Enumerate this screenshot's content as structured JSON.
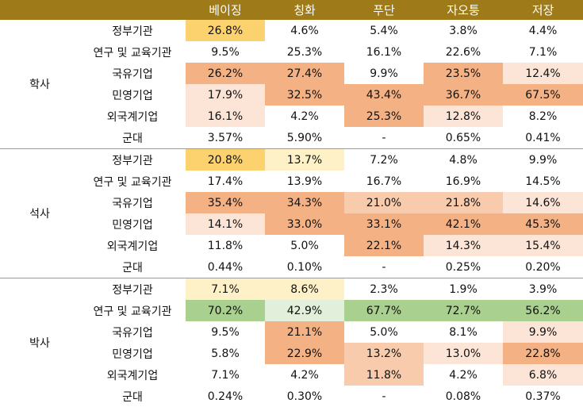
{
  "header": {
    "corner": "",
    "inst_header": "",
    "columns": [
      "베이징",
      "칭화",
      "푸단",
      "자오퉁",
      "저장"
    ]
  },
  "groups": [
    {
      "degree": "학사",
      "rows": [
        {
          "inst": "정부기관",
          "values": [
            "26.8%",
            "4.6%",
            "5.4%",
            "3.8%",
            "4.4%"
          ]
        },
        {
          "inst": "연구 및 교육기관",
          "values": [
            "9.5%",
            "25.3%",
            "16.1%",
            "22.6%",
            "7.1%"
          ]
        },
        {
          "inst": "국유기업",
          "values": [
            "26.2%",
            "27.4%",
            "9.9%",
            "23.5%",
            "12.4%"
          ]
        },
        {
          "inst": "민영기업",
          "values": [
            "17.9%",
            "32.5%",
            "43.4%",
            "36.7%",
            "67.5%"
          ]
        },
        {
          "inst": "외국계기업",
          "values": [
            "16.1%",
            "4.2%",
            "25.3%",
            "12.8%",
            "8.2%"
          ]
        },
        {
          "inst": "군대",
          "values": [
            "3.57%",
            "5.90%",
            "-",
            "0.65%",
            "0.41%"
          ]
        }
      ]
    },
    {
      "degree": "석사",
      "rows": [
        {
          "inst": "정부기관",
          "values": [
            "20.8%",
            "13.7%",
            "7.2%",
            "4.8%",
            "9.9%"
          ]
        },
        {
          "inst": "연구 및 교육기관",
          "values": [
            "17.4%",
            "13.9%",
            "16.7%",
            "16.9%",
            "14.5%"
          ]
        },
        {
          "inst": "국유기업",
          "values": [
            "35.4%",
            "34.3%",
            "21.0%",
            "21.8%",
            "14.6%"
          ]
        },
        {
          "inst": "민영기업",
          "values": [
            "14.1%",
            "33.0%",
            "33.1%",
            "42.1%",
            "45.3%"
          ]
        },
        {
          "inst": "외국계기업",
          "values": [
            "11.8%",
            "5.0%",
            "22.1%",
            "14.3%",
            "15.4%"
          ]
        },
        {
          "inst": "군대",
          "values": [
            "0.44%",
            "0.10%",
            "-",
            "0.25%",
            "0.20%"
          ]
        }
      ]
    },
    {
      "degree": "박사",
      "rows": [
        {
          "inst": "정부기관",
          "values": [
            "7.1%",
            "8.6%",
            "2.3%",
            "1.9%",
            "3.9%"
          ]
        },
        {
          "inst": "연구 및 교육기관",
          "values": [
            "70.2%",
            "42.9%",
            "67.7%",
            "72.7%",
            "56.2%"
          ]
        },
        {
          "inst": "국유기업",
          "values": [
            "9.5%",
            "21.1%",
            "5.0%",
            "8.1%",
            "9.9%"
          ]
        },
        {
          "inst": "민영기업",
          "values": [
            "5.8%",
            "22.9%",
            "13.2%",
            "13.0%",
            "22.8%"
          ]
        },
        {
          "inst": "외국계기업",
          "values": [
            "7.1%",
            "4.2%",
            "11.8%",
            "4.2%",
            "6.8%"
          ]
        },
        {
          "inst": "군대",
          "values": [
            "0.24%",
            "0.30%",
            "-",
            "0.08%",
            "0.37%"
          ]
        }
      ]
    }
  ],
  "colors": {
    "header_bg": "#9e7a18",
    "yellow_strong": "#fcd26f",
    "yellow_light": "#fff1c7",
    "orange_strong": "#f4b183",
    "orange_mid": "#f8cbad",
    "orange_light": "#fce4d6",
    "green_strong": "#a9d08e",
    "green_light": "#e2efda"
  }
}
